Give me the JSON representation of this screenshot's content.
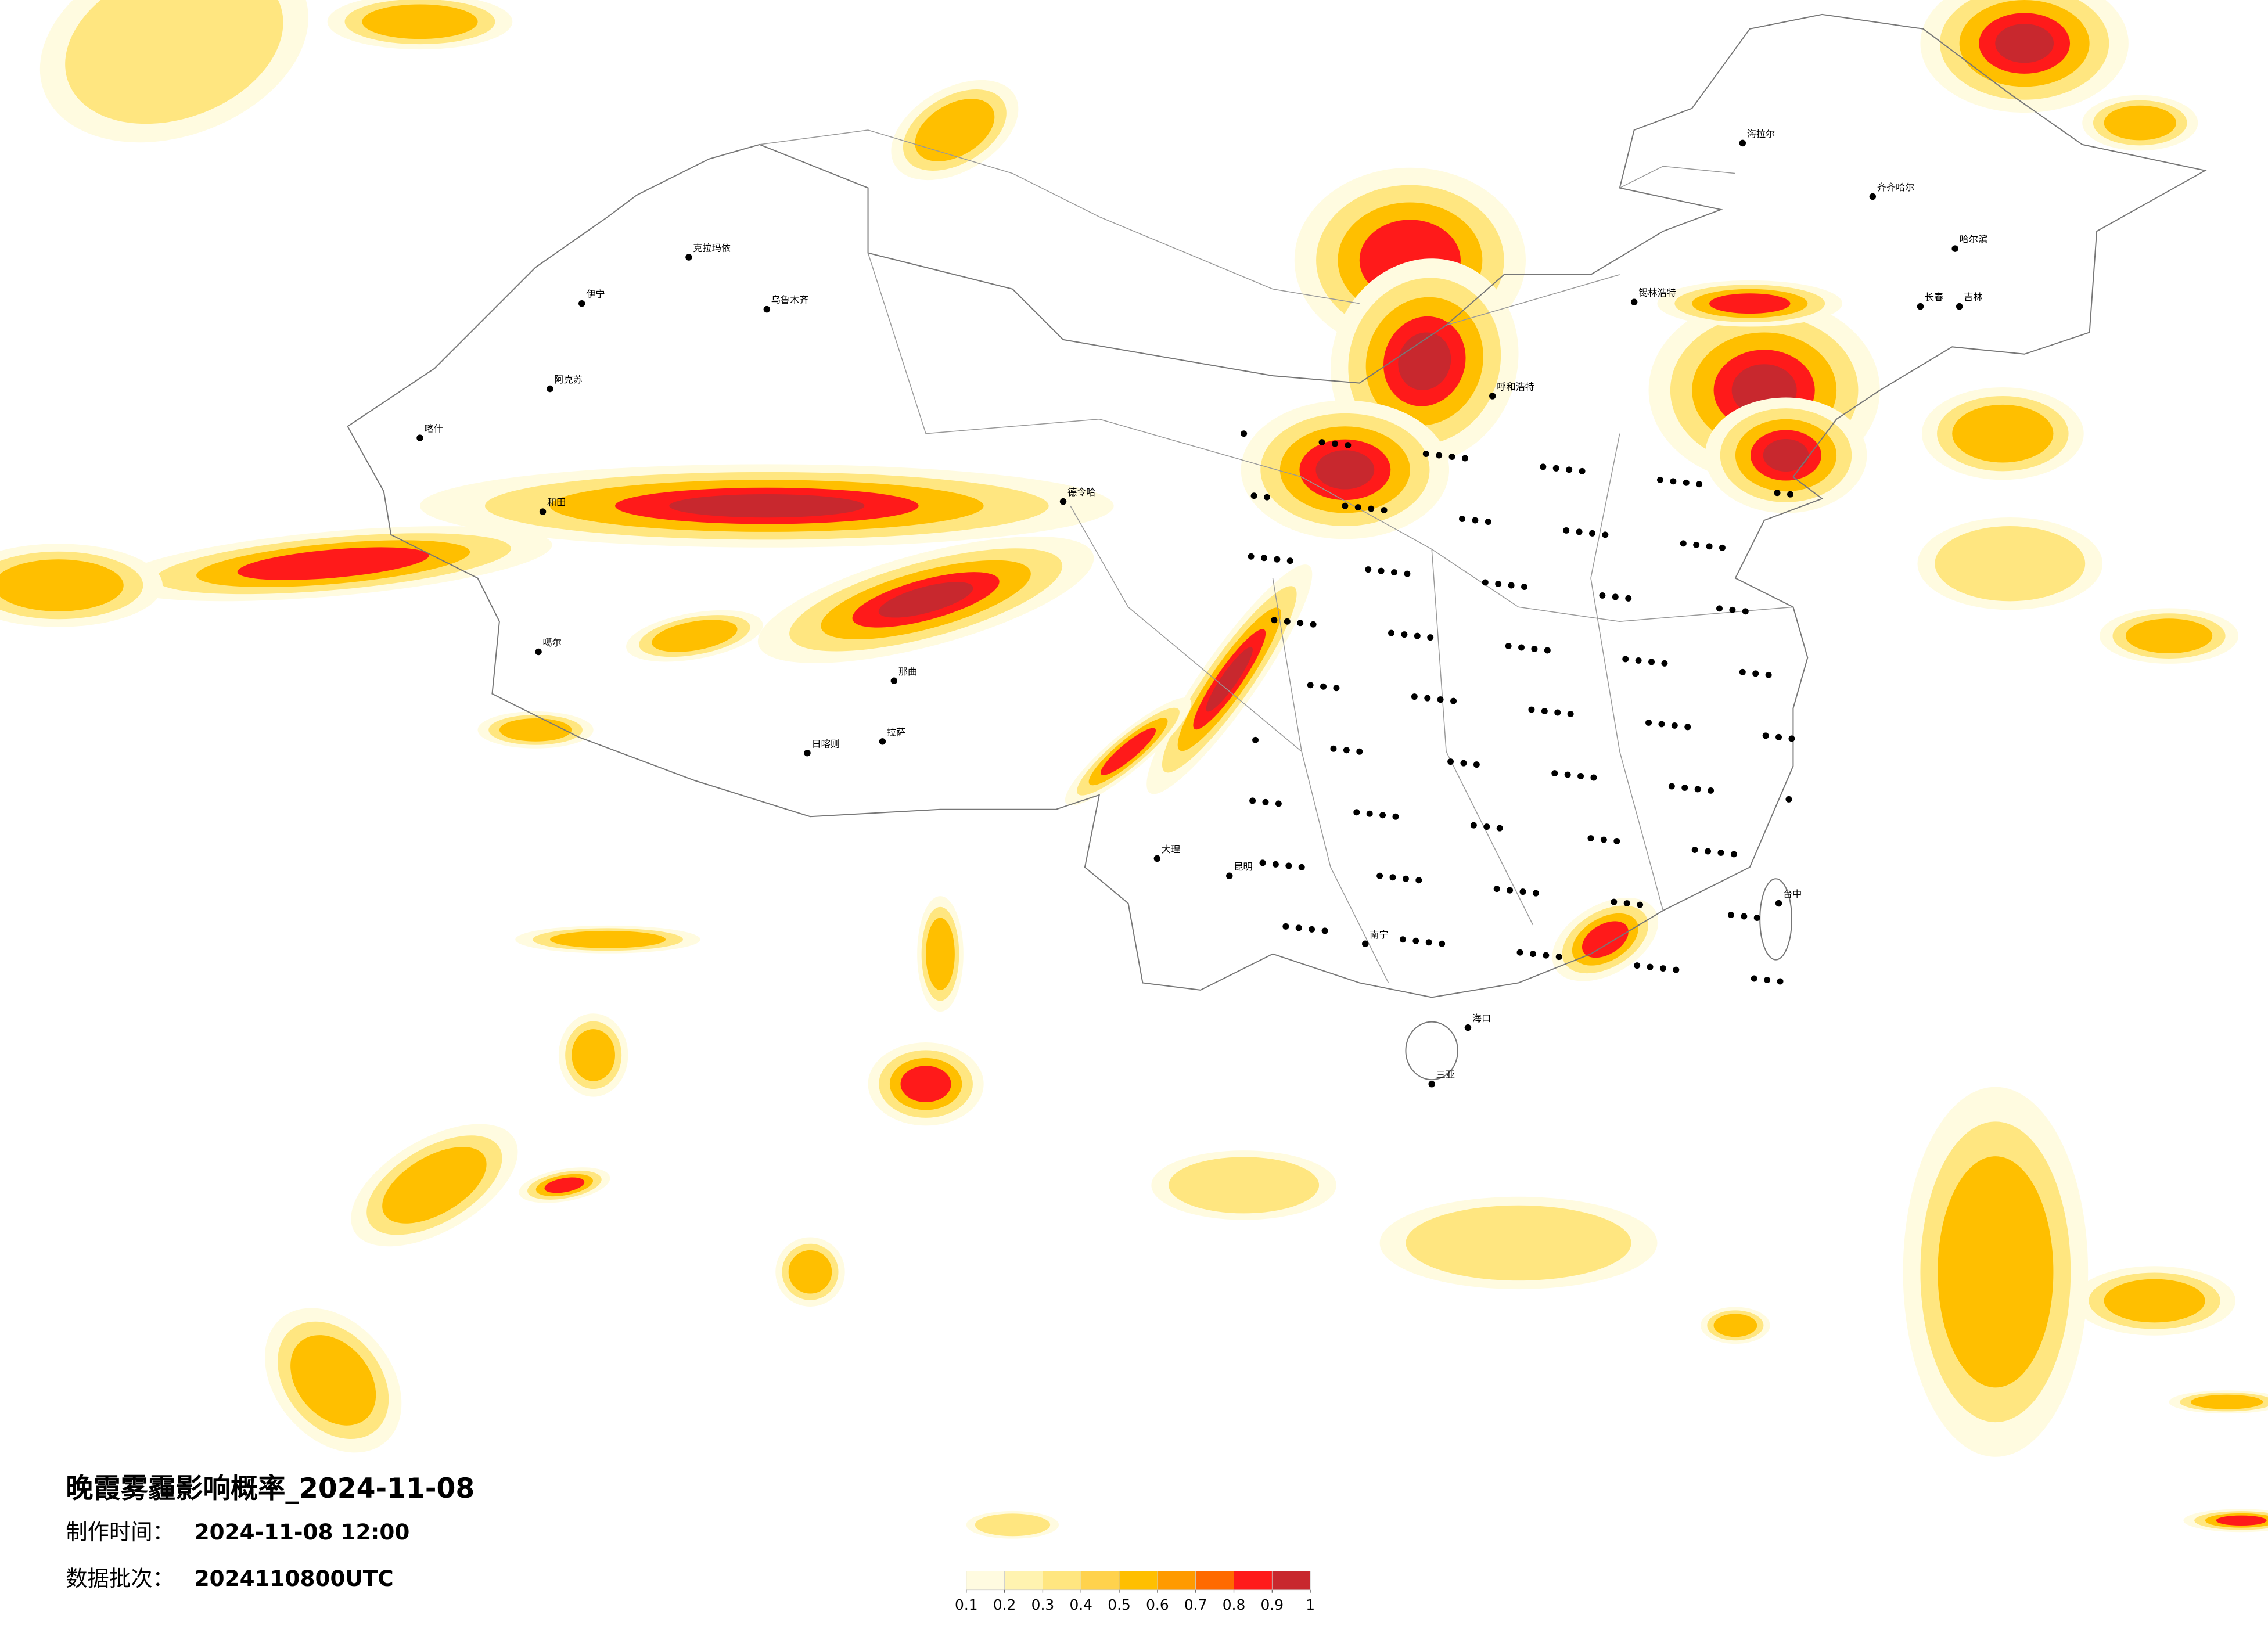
{
  "title": "晚霞雾霾影响概率_2024-11-08",
  "info": [
    {
      "label": "制作时间：",
      "value": "2024-11-08 12:00"
    },
    {
      "label": "数据批次：",
      "value": "2024110800UTC"
    }
  ],
  "legend": {
    "colors": [
      "#fffbe0",
      "#fff3b0",
      "#ffe680",
      "#ffd24d",
      "#ffbf00",
      "#ff9a00",
      "#ff6a00",
      "#ff1a1a",
      "#c8282e"
    ],
    "ticks": [
      0.1,
      0.2,
      0.3,
      0.4,
      0.5,
      0.6,
      0.7,
      0.8,
      0.9,
      1
    ]
  },
  "cities": [
    "海拉尔",
    "齐齐哈尔",
    "哈尔滨",
    "长春",
    "吉林",
    "锡林浩特",
    "呼和浩特",
    "克拉玛依",
    "乌鲁木齐",
    "伊宁",
    "阿克苏",
    "喀什",
    "和田",
    "噶尔",
    "日喀则",
    "拉萨",
    "那曲",
    "德令哈",
    "昆明",
    "大理",
    "南宁",
    "海口",
    "三亚",
    "台中"
  ]
}
